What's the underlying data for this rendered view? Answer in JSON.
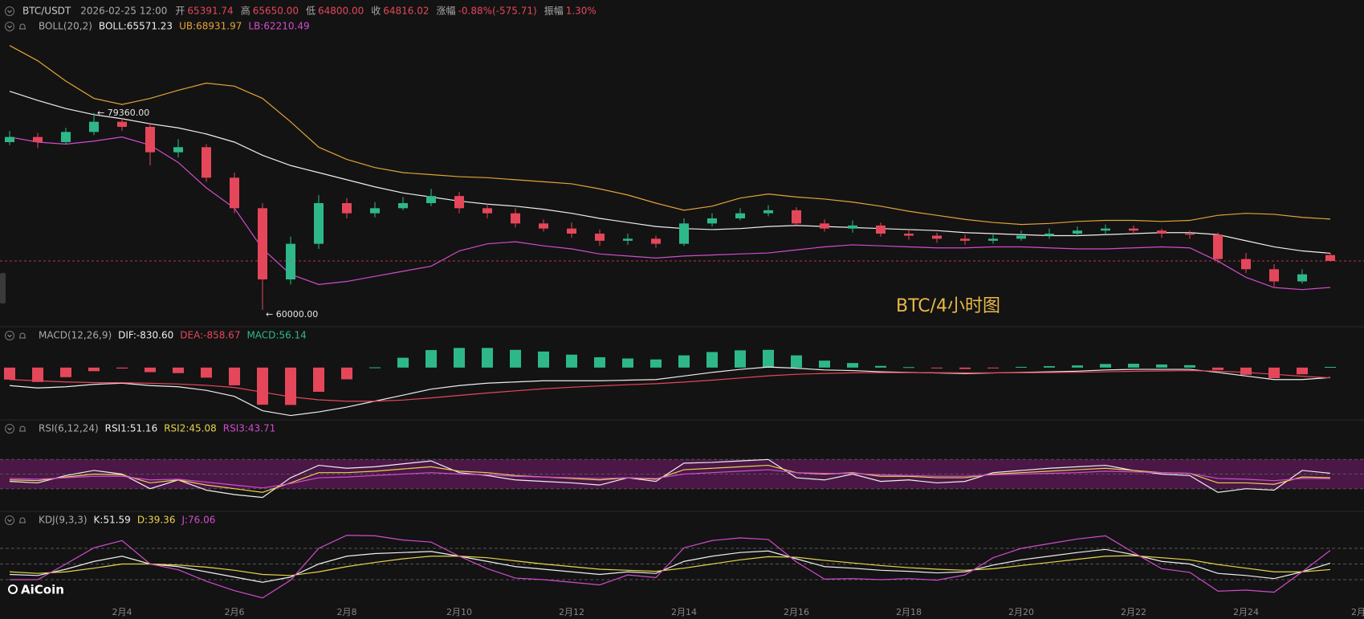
{
  "header": {
    "symbol": "BTC/USDT",
    "time": "2026-02-25 12:00",
    "fields": [
      {
        "label": "开",
        "value": "65391.74"
      },
      {
        "label": "高",
        "value": "65650.00"
      },
      {
        "label": "低",
        "value": "64800.00"
      },
      {
        "label": "收",
        "value": "64816.02"
      },
      {
        "label": "涨幅",
        "value": "-0.88%(-575.71)"
      },
      {
        "label": "振幅",
        "value": "1.30%"
      }
    ]
  },
  "watermark": "AiCoin",
  "chart_data": [
    {
      "type": "candlestick",
      "indicator": "BOLL(20,2)",
      "label": "BTC/4小时图",
      "categories": [
        null,
        null,
        null,
        null,
        "2月4",
        null,
        null,
        null,
        "2月6",
        null,
        null,
        null,
        "2月8",
        null,
        null,
        null,
        "2月10",
        null,
        null,
        null,
        "2月12",
        null,
        null,
        null,
        "2月14",
        null,
        null,
        null,
        "2月16",
        null,
        null,
        null,
        "2月18",
        null,
        null,
        null,
        "2月20",
        null,
        null,
        null,
        "2月22",
        null,
        null,
        null,
        "2月24",
        null,
        null,
        null,
        "2月"
      ],
      "open": [
        76500,
        77000,
        76500,
        77500,
        78500,
        78000,
        75500,
        76000,
        73000,
        70000,
        63000,
        66500,
        70500,
        69500,
        70000,
        70500,
        71200,
        70000,
        69500,
        68500,
        68000,
        67500,
        66800,
        67000,
        66500,
        68500,
        69000,
        69500,
        69800,
        68500,
        68000,
        68300,
        67500,
        67300,
        67000,
        66800,
        67000,
        67300,
        67500,
        67800,
        68000,
        67800,
        67500,
        67400,
        65000,
        64000,
        62800,
        65391.74,
        null
      ],
      "high": [
        77600,
        77400,
        77900,
        79360,
        78900,
        78400,
        76800,
        76300,
        73500,
        70500,
        67200,
        71300,
        71000,
        70600,
        71100,
        71900,
        71600,
        70400,
        70000,
        68900,
        68600,
        67900,
        67500,
        67300,
        69000,
        69500,
        70000,
        70300,
        70100,
        68900,
        68800,
        68600,
        67900,
        67600,
        67400,
        67500,
        67800,
        68000,
        68200,
        68400,
        68300,
        68000,
        67800,
        67600,
        65600,
        64500,
        64000,
        65650,
        null
      ],
      "low": [
        76200,
        75900,
        76300,
        77200,
        77600,
        74200,
        75000,
        72600,
        69500,
        60000,
        62500,
        66000,
        69000,
        69100,
        69800,
        70200,
        69500,
        69000,
        68100,
        67700,
        67100,
        66300,
        66400,
        66100,
        66300,
        68200,
        68800,
        69200,
        68200,
        67700,
        67600,
        67200,
        66900,
        66600,
        66400,
        66500,
        66800,
        67000,
        67200,
        67500,
        67400,
        67100,
        67000,
        64600,
        63600,
        62300,
        62600,
        64800,
        null
      ],
      "close": [
        77000,
        76500,
        77500,
        78500,
        78000,
        75500,
        76000,
        73000,
        70000,
        63000,
        66500,
        70500,
        69500,
        70000,
        70500,
        71200,
        70000,
        69500,
        68500,
        68000,
        67500,
        66800,
        67000,
        66500,
        68500,
        69000,
        69500,
        69800,
        68500,
        68000,
        68300,
        67500,
        67300,
        67000,
        66800,
        67000,
        67300,
        67500,
        67800,
        68000,
        67800,
        67500,
        67400,
        65000,
        64000,
        62800,
        63500,
        64816.02,
        null
      ],
      "up_color": "#2eb88a",
      "down_color": "#e5475a",
      "ylim": [
        58500,
        87000
      ],
      "price_line": true,
      "series": [
        {
          "name": "BOLL:65571.23",
          "color": "#eeeeee",
          "values": [
            81500,
            80600,
            79800,
            79200,
            78800,
            78300,
            77900,
            77300,
            76500,
            75200,
            74200,
            73500,
            72800,
            72100,
            71500,
            71100,
            70700,
            70400,
            70200,
            69900,
            69500,
            69000,
            68600,
            68200,
            68000,
            67900,
            68000,
            68200,
            68300,
            68200,
            68100,
            68000,
            67900,
            67800,
            67600,
            67500,
            67400,
            67300,
            67300,
            67400,
            67500,
            67600,
            67600,
            67400,
            66800,
            66200,
            65800,
            65571.23,
            null
          ]
        },
        {
          "name": "UB:68931.97",
          "color": "#e3a338",
          "values": [
            86000,
            84500,
            82500,
            80800,
            80200,
            80800,
            81600,
            82300,
            82000,
            80800,
            78500,
            76000,
            74800,
            74000,
            73500,
            73300,
            73100,
            73000,
            72800,
            72600,
            72400,
            71900,
            71300,
            70500,
            69800,
            70200,
            71000,
            71400,
            71100,
            70900,
            70600,
            70200,
            69700,
            69300,
            68900,
            68600,
            68400,
            68500,
            68700,
            68800,
            68800,
            68700,
            68800,
            69300,
            69500,
            69400,
            69100,
            68931.97,
            null
          ]
        },
        {
          "name": "LB:62210.49",
          "color": "#d24ccf",
          "values": [
            77000,
            76500,
            76300,
            76600,
            77000,
            76200,
            74500,
            72000,
            70000,
            66000,
            63500,
            62500,
            62800,
            63300,
            63800,
            64300,
            65800,
            66500,
            66700,
            66300,
            66000,
            65500,
            65300,
            65100,
            65300,
            65400,
            65500,
            65600,
            65900,
            66200,
            66400,
            66300,
            66200,
            66100,
            66100,
            66200,
            66200,
            66100,
            66000,
            66000,
            66100,
            66200,
            66100,
            64800,
            63200,
            62200,
            62000,
            62210.49,
            null
          ]
        }
      ],
      "annotations": [
        {
          "text": "← 79360.00",
          "value": 79360
        },
        {
          "text": "← 60000.00",
          "value": 60000
        }
      ]
    },
    {
      "type": "macd",
      "indicator": "MACD(12,26,9)",
      "ylim": [
        -4500,
        2000
      ],
      "series": [
        {
          "name": "DIF:-830.60",
          "color": "#eeeeee",
          "values": [
            -1500,
            -1700,
            -1600,
            -1400,
            -1300,
            -1500,
            -1600,
            -1900,
            -2400,
            -3600,
            -4000,
            -3700,
            -3300,
            -2800,
            -2300,
            -1800,
            -1500,
            -1300,
            -1200,
            -1100,
            -1100,
            -1100,
            -1050,
            -1000,
            -700,
            -400,
            -150,
            50,
            -50,
            -200,
            -250,
            -350,
            -400,
            -450,
            -500,
            -450,
            -400,
            -350,
            -300,
            -200,
            -150,
            -150,
            -150,
            -400,
            -700,
            -1000,
            -1000,
            -830.6,
            null
          ]
        },
        {
          "name": "DEA:-858.67",
          "color": "#e5475a",
          "values": [
            -1000,
            -1100,
            -1200,
            -1250,
            -1260,
            -1310,
            -1370,
            -1480,
            -1660,
            -2050,
            -2440,
            -2690,
            -2810,
            -2810,
            -2710,
            -2530,
            -2320,
            -2120,
            -1940,
            -1770,
            -1640,
            -1530,
            -1430,
            -1340,
            -1210,
            -1050,
            -870,
            -690,
            -560,
            -490,
            -440,
            -420,
            -420,
            -430,
            -440,
            -440,
            -430,
            -410,
            -390,
            -350,
            -310,
            -280,
            -250,
            -300,
            -400,
            -560,
            -720,
            -858.67,
            null
          ]
        }
      ],
      "histogram": {
        "name": "MACD:56.14",
        "up_color": "#2eb88a",
        "down_color": "#e5475a",
        "values": [
          -1000,
          -1200,
          -800,
          -300,
          -80,
          -380,
          -460,
          -840,
          -1480,
          -3100,
          -3120,
          -2020,
          -980,
          20,
          820,
          1460,
          1640,
          1640,
          1480,
          1340,
          1080,
          860,
          760,
          680,
          1020,
          1300,
          1440,
          1480,
          1020,
          580,
          380,
          140,
          40,
          -40,
          -120,
          -20,
          60,
          120,
          180,
          300,
          320,
          260,
          200,
          -200,
          -600,
          -880,
          -560,
          56.14,
          null
        ]
      }
    },
    {
      "type": "rsi",
      "indicator": "RSI(6,12,24)",
      "ylim": [
        0,
        100
      ],
      "levels": [
        30,
        50,
        70
      ],
      "band": [
        30,
        70
      ],
      "band_color": "#4a1747",
      "series": [
        {
          "name": "RSI1:51.16",
          "color": "#eeeeee",
          "values": [
            40,
            38,
            48,
            55,
            50,
            30,
            42,
            28,
            22,
            18,
            45,
            62,
            58,
            60,
            64,
            68,
            52,
            48,
            42,
            40,
            38,
            35,
            45,
            40,
            65,
            66,
            68,
            70,
            45,
            42,
            50,
            40,
            42,
            38,
            40,
            52,
            55,
            58,
            60,
            62,
            55,
            50,
            48,
            25,
            30,
            28,
            55,
            51.16,
            null
          ]
        },
        {
          "name": "RSI2:45.08",
          "color": "#e8d44d",
          "values": [
            42,
            41,
            46,
            50,
            49,
            38,
            42,
            35,
            30,
            25,
            38,
            52,
            52,
            54,
            57,
            60,
            54,
            52,
            48,
            46,
            44,
            42,
            45,
            43,
            56,
            58,
            60,
            62,
            52,
            50,
            52,
            47,
            47,
            45,
            45,
            50,
            52,
            54,
            56,
            58,
            55,
            52,
            51,
            38,
            38,
            36,
            46,
            45.08,
            null
          ]
        },
        {
          "name": "RSI3:43.71",
          "color": "#d24ccf",
          "values": [
            44,
            43,
            45,
            47,
            47,
            42,
            43,
            39,
            35,
            31,
            37,
            45,
            46,
            48,
            50,
            52,
            50,
            49,
            47,
            46,
            45,
            44,
            45,
            44,
            50,
            52,
            54,
            56,
            52,
            51,
            51,
            49,
            48,
            47,
            47,
            49,
            50,
            51,
            52,
            54,
            53,
            52,
            51,
            44,
            43,
            41,
            44,
            43.71,
            null
          ]
        }
      ]
    },
    {
      "type": "kdj",
      "indicator": "KDJ(9,3,3)",
      "ylim": [
        -20,
        120
      ],
      "levels": [
        20,
        50,
        80
      ],
      "series": [
        {
          "name": "K:51.59",
          "color": "#eeeeee",
          "values": [
            30,
            28,
            40,
            55,
            65,
            50,
            45,
            35,
            25,
            15,
            25,
            50,
            65,
            70,
            72,
            74,
            65,
            55,
            45,
            40,
            35,
            30,
            35,
            32,
            55,
            65,
            72,
            75,
            60,
            45,
            42,
            38,
            36,
            33,
            35,
            48,
            58,
            65,
            72,
            78,
            68,
            55,
            50,
            32,
            28,
            22,
            35,
            51.59,
            null
          ]
        },
        {
          "name": "D:39.36",
          "color": "#e8d44d",
          "values": [
            35,
            32,
            35,
            42,
            50,
            50,
            48,
            44,
            38,
            30,
            28,
            35,
            45,
            53,
            60,
            65,
            65,
            62,
            56,
            50,
            45,
            40,
            38,
            36,
            42,
            50,
            58,
            64,
            63,
            57,
            52,
            47,
            43,
            40,
            38,
            41,
            47,
            53,
            59,
            65,
            66,
            62,
            58,
            49,
            42,
            35,
            35,
            39.36,
            null
          ]
        },
        {
          "name": "J:76.06",
          "color": "#d24ccf",
          "values": [
            20,
            20,
            50,
            81,
            95,
            50,
            39,
            17,
            -1,
            -15,
            19,
            80,
            105,
            104,
            96,
            92,
            65,
            41,
            23,
            20,
            15,
            10,
            29,
            24,
            81,
            95,
            100,
            97,
            54,
            21,
            22,
            20,
            22,
            19,
            29,
            62,
            80,
            89,
            98,
            104,
            72,
            41,
            34,
            -2,
            0,
            -4,
            35,
            76.06,
            null
          ]
        }
      ]
    }
  ]
}
